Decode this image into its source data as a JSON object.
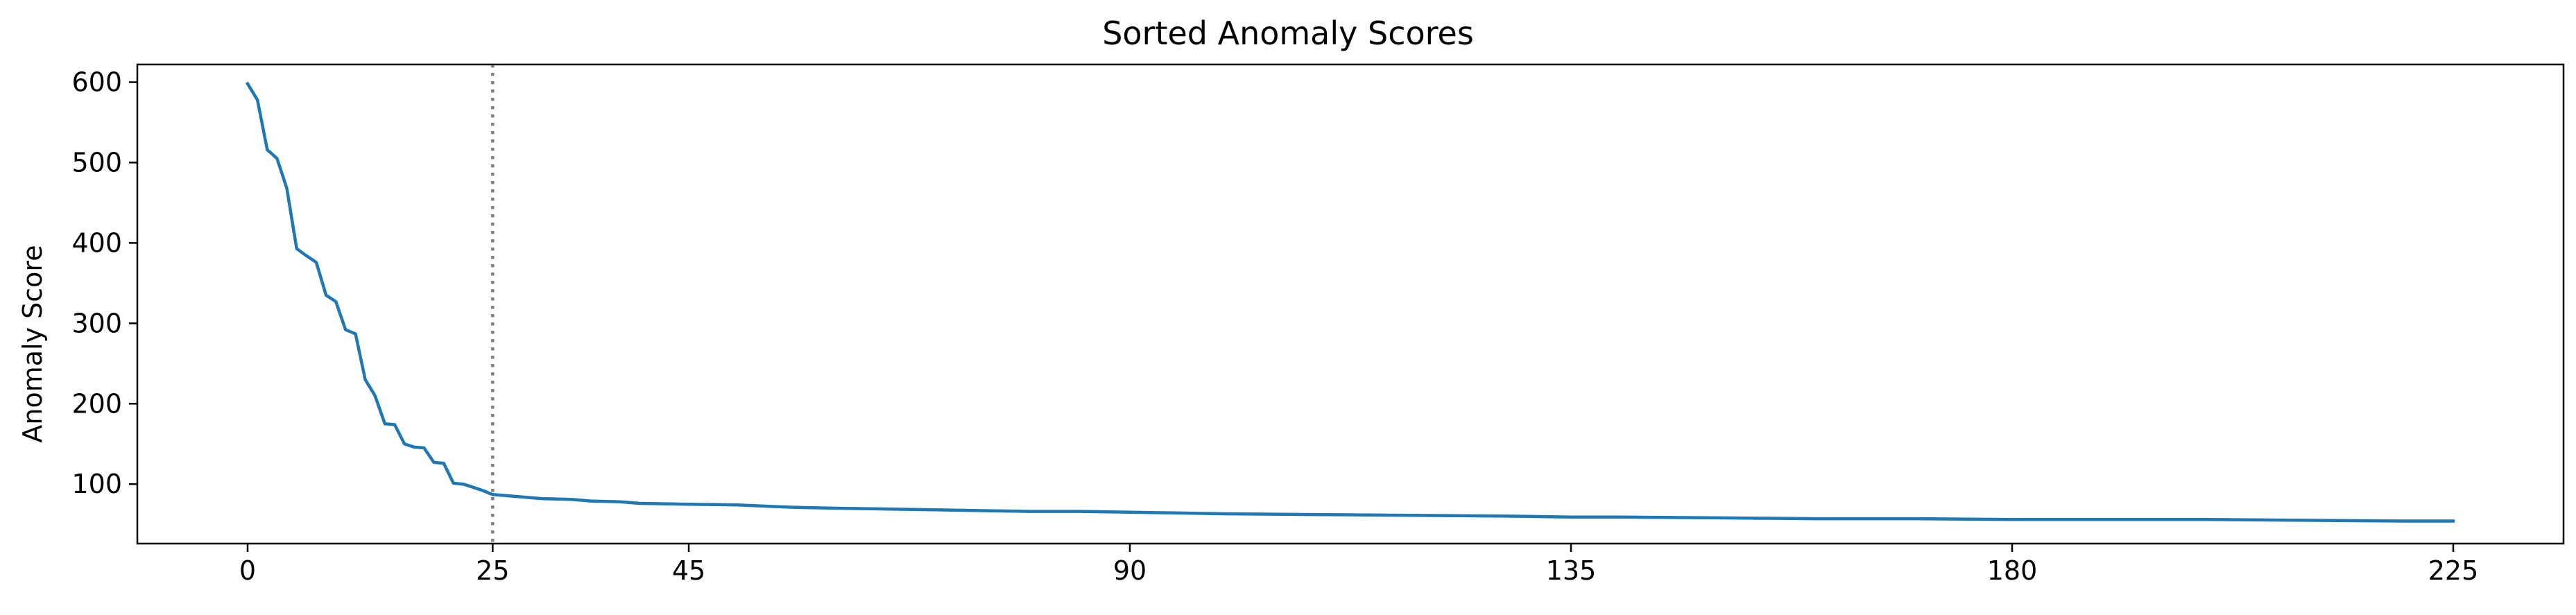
{
  "chart_data": {
    "type": "line",
    "title": "Sorted Anomaly Scores",
    "xlabel": "",
    "ylabel": "Anomaly Score",
    "xlim": [
      -11.25,
      236.25
    ],
    "ylim": [
      26,
      622
    ],
    "xticks": [
      0,
      25,
      45,
      90,
      135,
      180,
      225
    ],
    "xtick_labels": [
      "0",
      "25",
      "45",
      "90",
      "135",
      "180",
      "225"
    ],
    "yticks": [
      100,
      200,
      300,
      400,
      500,
      600
    ],
    "ytick_labels": [
      "100",
      "200",
      "300",
      "400",
      "500",
      "600"
    ],
    "grid": false,
    "legend": "none",
    "threshold_x": 25,
    "colors": {
      "line": "#1f77b4",
      "threshold": "#808080"
    },
    "series": [
      {
        "x": [
          0,
          1,
          2,
          3,
          4,
          5,
          6,
          7,
          8,
          9,
          10,
          11,
          12,
          13,
          14,
          15,
          16,
          17,
          18,
          19,
          20,
          21,
          22,
          23,
          24,
          25,
          26,
          28,
          30,
          33,
          35,
          38,
          40,
          45,
          50,
          52,
          54,
          56,
          60,
          65,
          70,
          75,
          80,
          85,
          90,
          95,
          100,
          110,
          120,
          130,
          135,
          140,
          150,
          160,
          170,
          180,
          190,
          200,
          210,
          220,
          224,
          225
        ],
        "values": [
          598,
          578,
          516,
          505,
          468,
          393,
          384,
          376,
          335,
          327,
          292,
          287,
          230,
          210,
          175,
          174,
          150,
          146,
          145,
          127,
          126,
          101,
          100,
          96,
          92,
          87,
          86,
          84,
          82,
          81,
          79,
          78,
          76,
          75,
          74,
          73,
          72,
          71,
          70,
          69,
          68,
          67,
          66,
          66,
          65,
          64,
          63,
          62,
          61,
          60,
          59,
          59,
          58,
          57,
          57,
          56,
          56,
          56,
          55,
          54,
          54,
          54
        ]
      }
    ]
  }
}
